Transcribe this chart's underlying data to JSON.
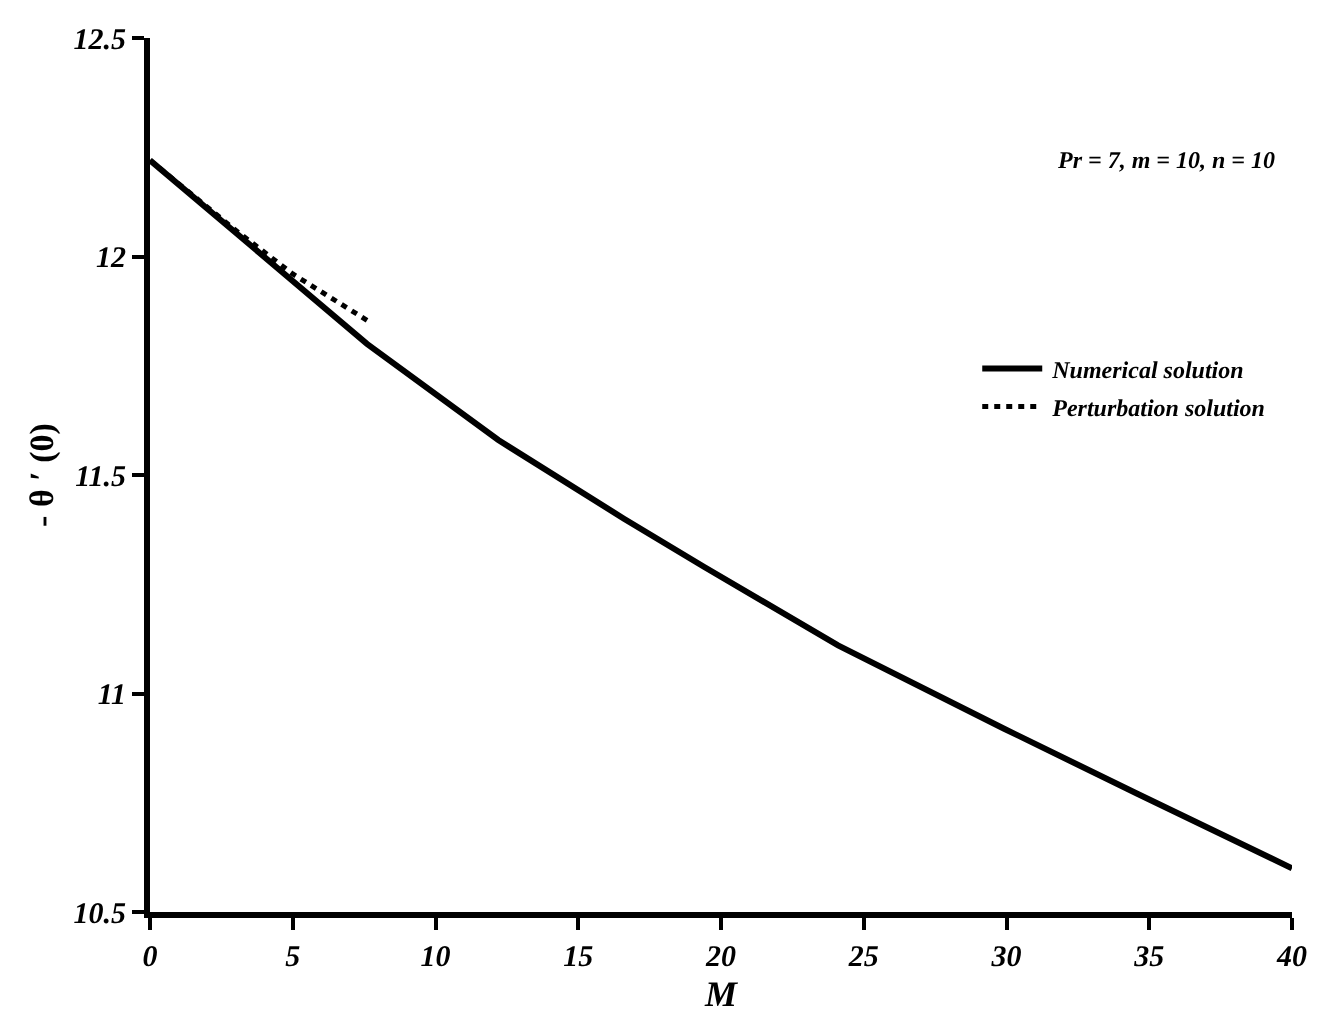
{
  "chart_data": {
    "type": "line",
    "xlabel": "M",
    "ylabel": "- θ ′ (0)",
    "annotations": [
      "Pr = 7, m = 10, n = 10"
    ],
    "series": [
      {
        "name": "Numerical solution",
        "color": "#000000",
        "line_style": "solid",
        "x": [
          0,
          2.9,
          7.6,
          12.2,
          16.6,
          19.4,
          24.1,
          29.9,
          34.6,
          40
        ],
        "values": [
          12.22,
          12.06,
          11.8,
          11.58,
          11.4,
          11.29,
          11.11,
          10.92,
          10.77,
          10.6
        ]
      },
      {
        "name": "Perturbation solution",
        "color": "#000000",
        "line_style": "dotted",
        "x": [
          0,
          3,
          5,
          7.7
        ],
        "values": [
          12.22,
          12.06,
          11.96,
          11.85
        ]
      }
    ],
    "xlim": [
      0,
      40
    ],
    "xticks": [
      0,
      5,
      10,
      15,
      20,
      25,
      30,
      35,
      40
    ],
    "ylim": [
      10.5,
      12.5
    ],
    "yticks": [
      10.5,
      11,
      11.5,
      12,
      12.5
    ],
    "legend": "right",
    "marker": "none"
  }
}
